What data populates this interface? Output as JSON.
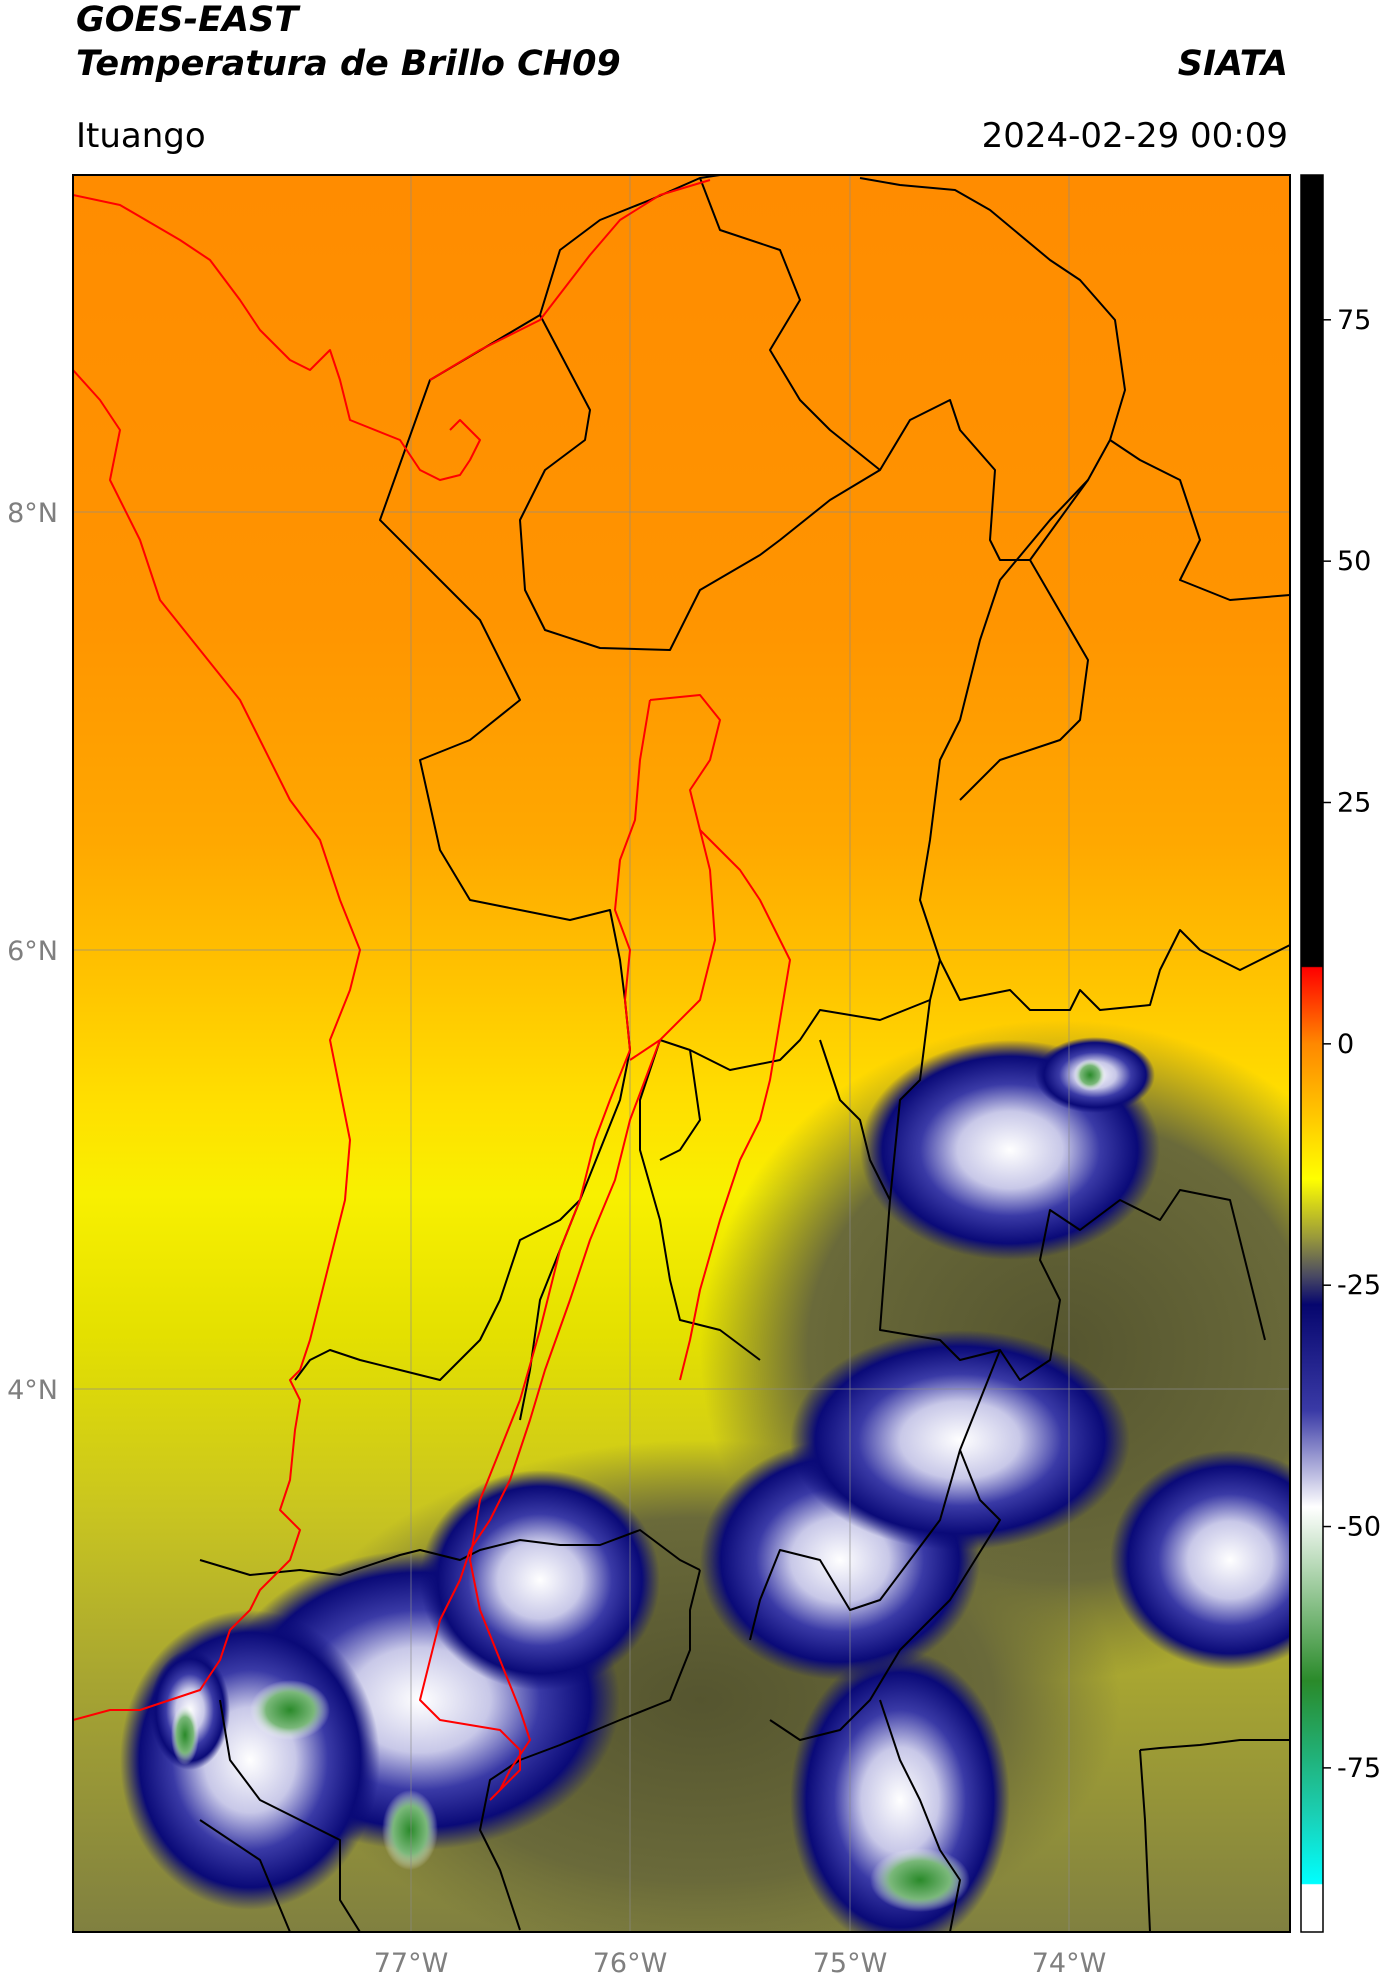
{
  "header": {
    "line1": "GOES-EAST",
    "line2": "Temperatura de Brillo CH09",
    "brand": "SIATA",
    "region": "Ituango",
    "timestamp": "2024-02-29 00:09"
  },
  "map": {
    "lon_labels": [
      "77°W",
      "76°W",
      "75°W",
      "74°W"
    ],
    "lat_labels": [
      "8°N",
      "6°N",
      "4°N"
    ],
    "boundary_colors": {
      "departments": "#000000",
      "coast_and_basin": "#ff0000"
    }
  },
  "colorbar": {
    "tick_labels": [
      "75",
      "50",
      "25",
      "0",
      "-25",
      "-50",
      "-75"
    ],
    "stops": [
      {
        "value": 90,
        "color": "#000000"
      },
      {
        "value": 8,
        "color": "#000000"
      },
      {
        "value": 7.9,
        "color": "#ff0000"
      },
      {
        "value": 0,
        "color": "#ff8800"
      },
      {
        "value": -8,
        "color": "#ffcc00"
      },
      {
        "value": -14,
        "color": "#ffff00"
      },
      {
        "value": -20,
        "color": "#9a9a3a"
      },
      {
        "value": -24,
        "color": "#4a4a62"
      },
      {
        "value": -27,
        "color": "#06066e"
      },
      {
        "value": -38,
        "color": "#3a3aa6"
      },
      {
        "value": -48,
        "color": "#ffffff"
      },
      {
        "value": -58,
        "color": "#88c088"
      },
      {
        "value": -66,
        "color": "#2a8a2a"
      },
      {
        "value": -80,
        "color": "#1ad0b6"
      },
      {
        "value": -87,
        "color": "#00ffff"
      },
      {
        "value": -87.1,
        "color": "#ffffff"
      }
    ]
  }
}
